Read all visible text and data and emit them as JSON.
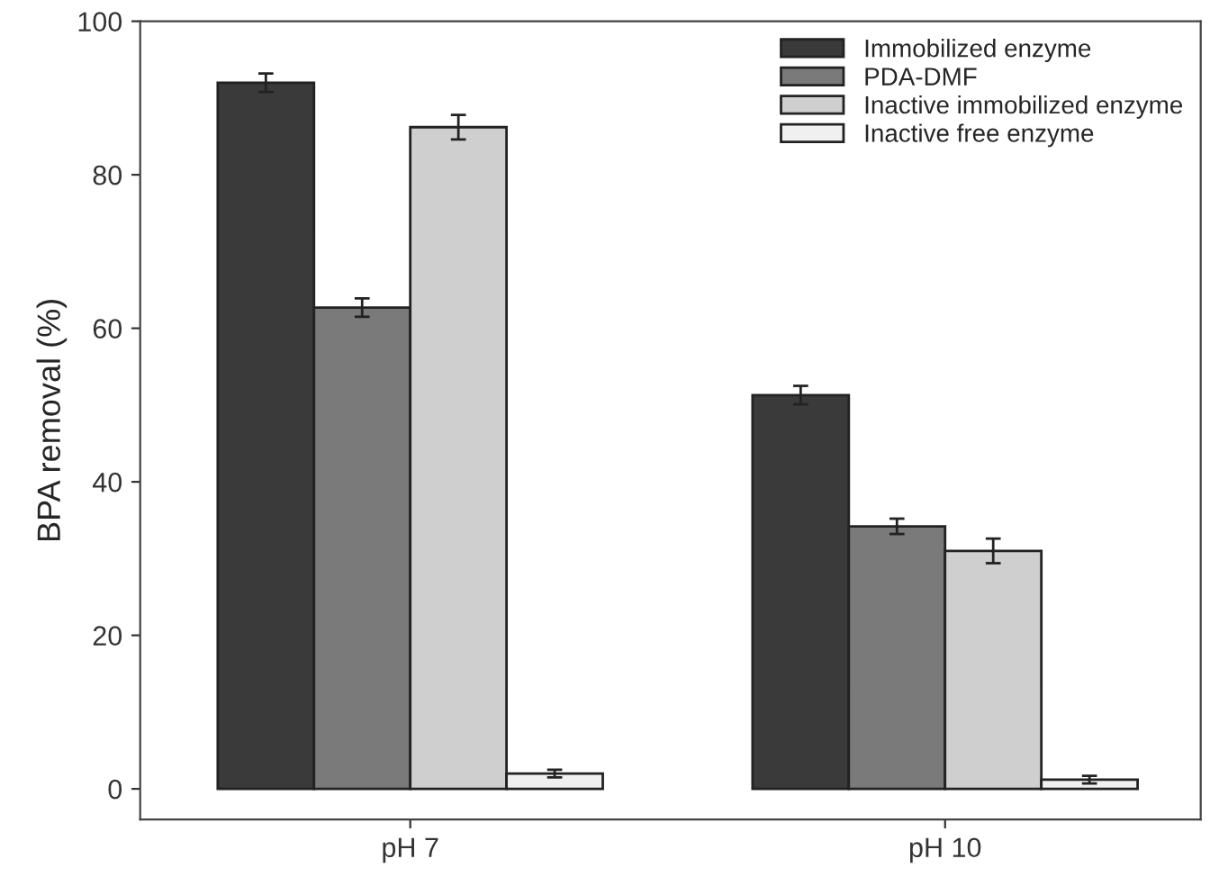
{
  "chart_data": {
    "type": "bar",
    "ylabel": "BPA removal (%)",
    "categories": [
      "pH 7",
      "pH 10"
    ],
    "series": [
      {
        "name": "Immobilized enzyme",
        "color": "#3a3a3a",
        "values": [
          92.0,
          51.3
        ],
        "errors": [
          1.2,
          1.2
        ]
      },
      {
        "name": "PDA-DMF",
        "color": "#7a7a7a",
        "values": [
          62.7,
          34.2
        ],
        "errors": [
          1.2,
          1.0
        ]
      },
      {
        "name": "Inactive immobilized enzyme",
        "color": "#cfcfcf",
        "values": [
          86.2,
          31.0
        ],
        "errors": [
          1.6,
          1.6
        ]
      },
      {
        "name": "Inactive free enzyme",
        "color": "#f0f0f0",
        "values": [
          2.0,
          1.2
        ],
        "errors": [
          0.5,
          0.5
        ]
      }
    ],
    "ylim": [
      -4,
      100
    ],
    "yticks": [
      0,
      20,
      40,
      60,
      80,
      100
    ],
    "grid": false,
    "legend": "top right"
  }
}
